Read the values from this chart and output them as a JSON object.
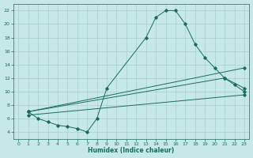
{
  "xlabel": "Humidex (Indice chaleur)",
  "bg_color": "#c6e8e6",
  "grid_color": "#aacfcd",
  "line_color": "#1a6b60",
  "marker_color": "#1a6b60",
  "xlim": [
    -0.5,
    23.5
  ],
  "ylim": [
    3.0,
    23.0
  ],
  "xticks": [
    0,
    1,
    2,
    3,
    4,
    5,
    6,
    7,
    8,
    9,
    10,
    11,
    12,
    13,
    14,
    15,
    16,
    17,
    18,
    19,
    20,
    21,
    22,
    23
  ],
  "yticks": [
    4,
    6,
    8,
    10,
    12,
    14,
    16,
    18,
    20,
    22
  ],
  "line1_x": [
    1,
    2,
    3,
    4,
    5,
    6,
    7,
    8,
    9,
    13,
    14,
    15,
    16,
    17,
    18,
    19,
    20,
    21,
    22,
    23
  ],
  "line1_y": [
    7,
    6,
    5.5,
    5,
    4.8,
    4.5,
    4,
    6,
    10.5,
    18,
    21,
    22,
    22,
    20,
    17,
    15,
    13.5,
    12,
    11,
    10
  ],
  "line2_x": [
    1,
    21,
    23
  ],
  "line2_y": [
    7,
    12,
    10.5
  ],
  "line3_x": [
    1,
    23
  ],
  "line3_y": [
    7,
    13.5
  ],
  "line4_x": [
    1,
    23
  ],
  "line4_y": [
    6.5,
    9.5
  ]
}
